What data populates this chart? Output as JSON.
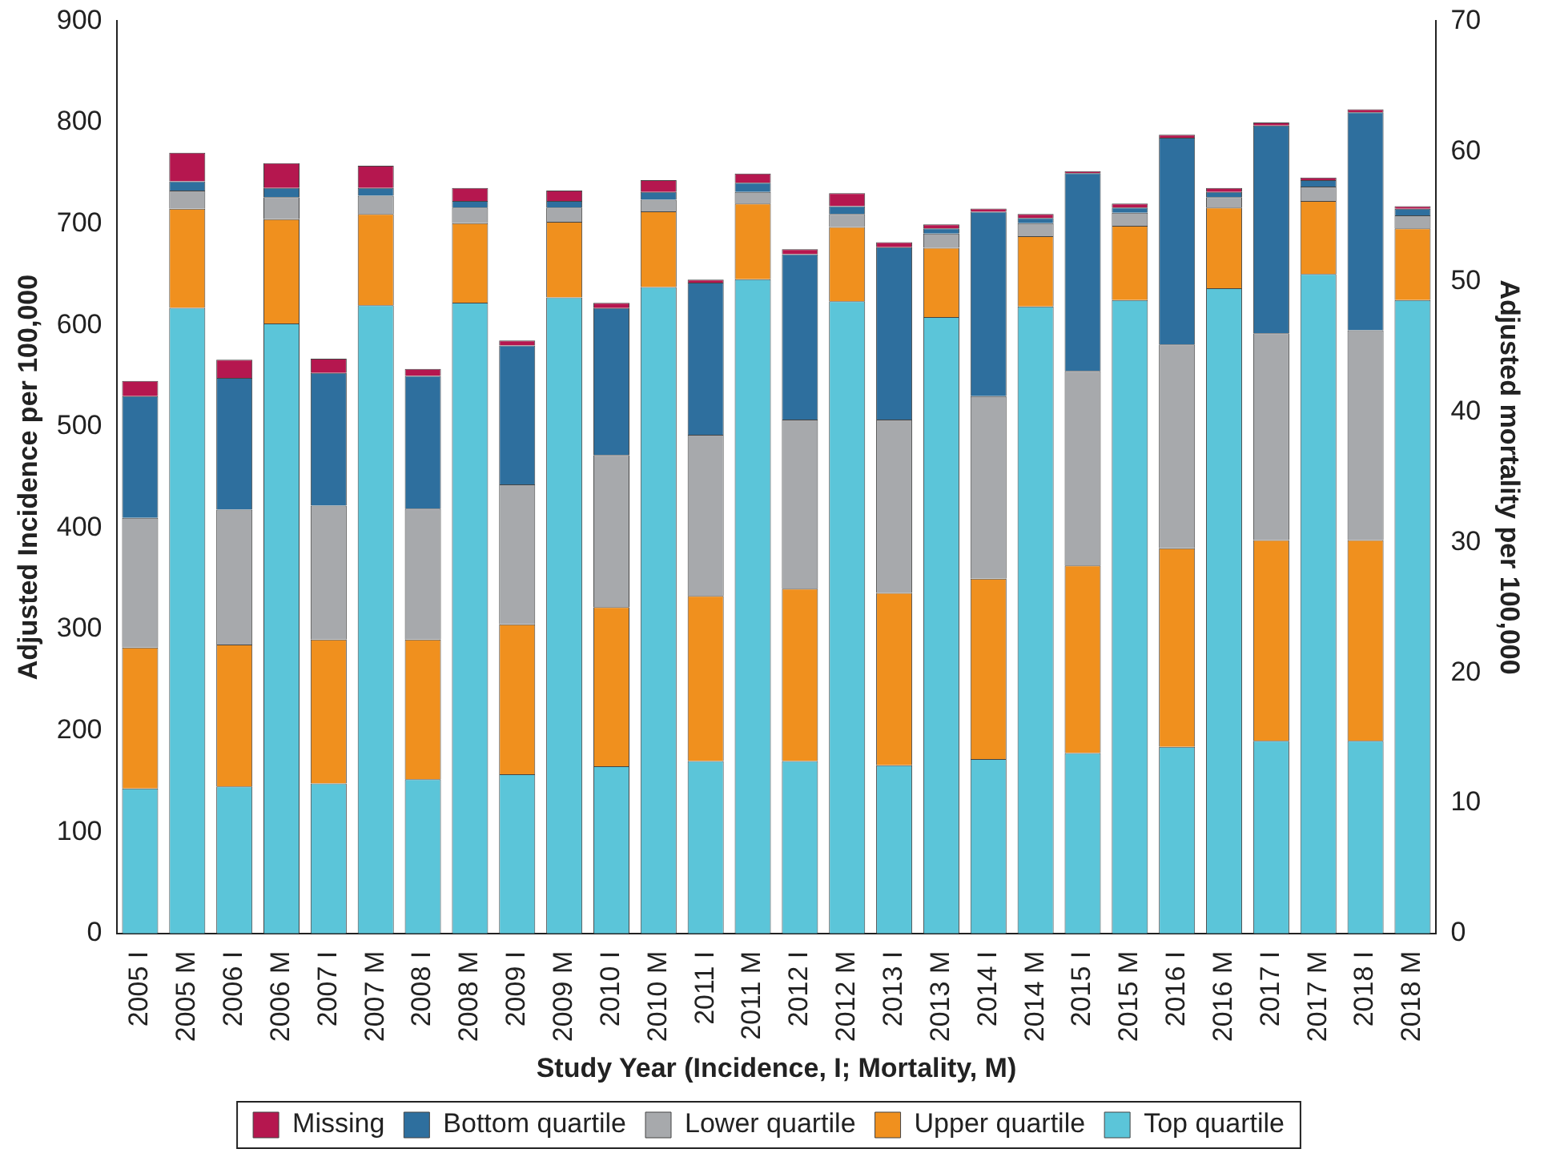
{
  "chart_data": {
    "type": "bar",
    "stacked": true,
    "xlabel": "Study Year (Incidence, I; Mortality, M)",
    "ylabel": "Adjusted Incidence per 100,000",
    "y2label": "Adjusted mortality per 100,000",
    "categories": [
      "2005 I",
      "2005 M",
      "2006 I",
      "2006 M",
      "2007 I",
      "2007 M",
      "2008 I",
      "2008 M",
      "2009 I",
      "2009 M",
      "2010 I",
      "2010 M",
      "2011 I",
      "2011 M",
      "2012 I",
      "2012 M",
      "2013 I",
      "2013 M",
      "2014 I",
      "2014 M",
      "2015 I",
      "2015 M",
      "2016 I",
      "2016 M",
      "2017 I",
      "2017 M",
      "2018 I",
      "2018 M"
    ],
    "ylim": [
      0,
      900
    ],
    "yticks": [
      0,
      100,
      200,
      300,
      400,
      500,
      600,
      700,
      800,
      900
    ],
    "y2lim": [
      0,
      70
    ],
    "y2ticks": [
      0,
      10,
      20,
      30,
      40,
      50,
      60,
      70
    ],
    "grid": false,
    "legend": "bottom",
    "series": [
      {
        "name": "Top quartile",
        "color": "#5bc5d9",
        "values": [
          143,
          null,
          145,
          null,
          148,
          null,
          152,
          null,
          157,
          null,
          165,
          null,
          170,
          null,
          170,
          null,
          166,
          null,
          172,
          null,
          178,
          null,
          184,
          null,
          190,
          null,
          190,
          null
        ]
      },
      {
        "name": "Upper quartile",
        "color": "#f0901e",
        "values": [
          139,
          null,
          140,
          null,
          142,
          null,
          138,
          null,
          148,
          null,
          157,
          null,
          163,
          null,
          170,
          null,
          170,
          null,
          178,
          null,
          185,
          null,
          196,
          null,
          198,
          null,
          198,
          null
        ]
      },
      {
        "name": "Lower quartile",
        "color": "#a7a9ac",
        "values": [
          128,
          null,
          133,
          null,
          132,
          null,
          129,
          null,
          138,
          null,
          150,
          null,
          159,
          null,
          167,
          null,
          171,
          null,
          180,
          null,
          192,
          null,
          201,
          null,
          204,
          null,
          207,
          null
        ]
      },
      {
        "name": "Bottom quartile",
        "color": "#2e6f9e",
        "values": [
          120,
          null,
          130,
          null,
          131,
          null,
          131,
          null,
          137,
          null,
          145,
          null,
          150,
          null,
          163,
          null,
          170,
          null,
          182,
          null,
          195,
          null,
          204,
          null,
          205,
          null,
          215,
          null
        ]
      },
      {
        "name": "Missing",
        "color": "#b5174f",
        "values": [
          15,
          null,
          18,
          null,
          14,
          null,
          7,
          null,
          5,
          null,
          5,
          null,
          3,
          null,
          5,
          null,
          5,
          null,
          3,
          null,
          2,
          null,
          3,
          null,
          3,
          null,
          3,
          null
        ]
      },
      {
        "axis": "y2",
        "color": "#5bc5d9",
        "values": [
          null,
          48.0,
          null,
          46.8,
          null,
          48.2,
          null,
          48.4,
          null,
          48.8,
          null,
          49.6,
          null,
          50.2,
          null,
          48.5,
          null,
          47.3,
          null,
          48.1,
          null,
          48.6,
          null,
          49.5,
          null,
          50.6,
          null,
          48.6
        ]
      },
      {
        "axis": "y2",
        "color": "#f0901e",
        "values": [
          null,
          7.6,
          null,
          8.0,
          null,
          7.0,
          null,
          6.1,
          null,
          5.8,
          null,
          5.8,
          null,
          5.8,
          null,
          5.7,
          null,
          5.3,
          null,
          5.4,
          null,
          5.7,
          null,
          6.2,
          null,
          5.6,
          null,
          5.5
        ]
      },
      {
        "axis": "y2",
        "color": "#a7a9ac",
        "values": [
          null,
          1.4,
          null,
          1.7,
          null,
          1.4,
          null,
          1.2,
          null,
          1.1,
          null,
          0.9,
          null,
          0.9,
          null,
          1.0,
          null,
          1.1,
          null,
          1.0,
          null,
          1.0,
          null,
          0.8,
          null,
          1.1,
          null,
          1.0
        ]
      },
      {
        "axis": "y2",
        "color": "#2e6f9e",
        "values": [
          null,
          0.7,
          null,
          0.7,
          null,
          0.6,
          null,
          0.5,
          null,
          0.5,
          null,
          0.6,
          null,
          0.7,
          null,
          0.6,
          null,
          0.4,
          null,
          0.4,
          null,
          0.4,
          null,
          0.4,
          null,
          0.5,
          null,
          0.5
        ]
      },
      {
        "axis": "y2",
        "color": "#b5174f",
        "values": [
          null,
          2.2,
          null,
          1.9,
          null,
          1.7,
          null,
          1.0,
          null,
          0.8,
          null,
          0.9,
          null,
          0.7,
          null,
          1.0,
          null,
          0.3,
          null,
          0.3,
          null,
          0.3,
          null,
          0.3,
          null,
          0.2,
          null,
          0.2
        ]
      }
    ]
  }
}
